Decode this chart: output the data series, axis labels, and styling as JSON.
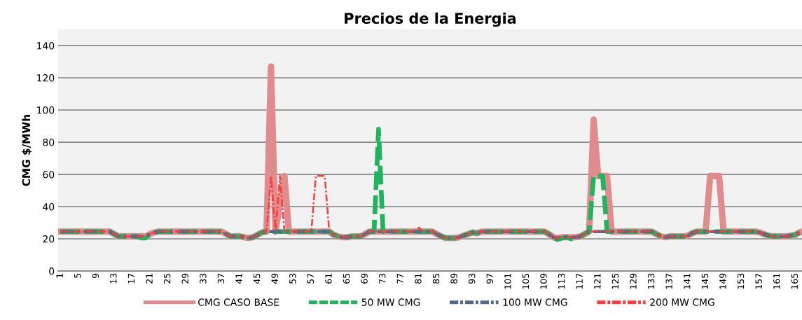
{
  "chart_data": {
    "type": "line",
    "title": "Precios de la Energia",
    "ylabel": "CMG $/MWh",
    "categories": [
      "1",
      null,
      null,
      null,
      "5",
      null,
      null,
      null,
      "9",
      null,
      null,
      null,
      "13",
      null,
      null,
      null,
      "17",
      null,
      null,
      null,
      "21",
      null,
      null,
      null,
      "25",
      null,
      null,
      null,
      "29",
      null,
      null,
      null,
      "33",
      null,
      null,
      null,
      "37",
      null,
      null,
      null,
      "41",
      null,
      null,
      null,
      "45",
      null,
      null,
      null,
      "49",
      null,
      null,
      null,
      "53",
      null,
      null,
      null,
      "57",
      null,
      null,
      null,
      "61",
      null,
      null,
      null,
      "65",
      null,
      null,
      null,
      "69",
      null,
      null,
      null,
      "73",
      null,
      null,
      null,
      "77",
      null,
      null,
      null,
      "81",
      null,
      null,
      null,
      "85",
      null,
      null,
      null,
      "89",
      null,
      null,
      null,
      "93",
      null,
      null,
      null,
      "97",
      null,
      null,
      null,
      "101",
      null,
      null,
      null,
      "105",
      null,
      null,
      null,
      "109",
      null,
      null,
      null,
      "113",
      null,
      null,
      null,
      "117",
      null,
      null,
      null,
      "121",
      null,
      null,
      null,
      "125",
      null,
      null,
      null,
      "129",
      null,
      null,
      null,
      "133",
      null,
      null,
      null,
      "137",
      null,
      null,
      null,
      "141",
      null,
      null,
      null,
      "145",
      null,
      null,
      null,
      "149",
      null,
      null,
      null,
      "153",
      null,
      null,
      null,
      "157",
      null,
      null,
      null,
      "161",
      null,
      null,
      null,
      "165",
      null
    ],
    "series": [
      {
        "name": "CMG CASO BASE",
        "color": "#e08c8e",
        "line_style": "solid",
        "values": [
          24.5,
          24.5,
          24.5,
          24.5,
          24.5,
          24.5,
          24.5,
          24.5,
          24.5,
          24.5,
          24.5,
          24.5,
          23,
          21.5,
          21.5,
          21.5,
          21.5,
          21.5,
          21.5,
          21.5,
          23,
          24,
          24.5,
          24.5,
          24.5,
          24.5,
          24.5,
          24.5,
          24.5,
          24.5,
          24.5,
          24.5,
          24.5,
          24.5,
          24.5,
          24.5,
          24.5,
          23,
          21.5,
          21.5,
          21.5,
          21,
          20.5,
          21,
          22.5,
          24,
          24.5,
          127,
          24.5,
          42,
          59,
          24.5,
          24.5,
          24.5,
          24.5,
          24.5,
          24.5,
          24.5,
          24.5,
          24.5,
          24.5,
          22.5,
          21.5,
          21,
          21,
          21.5,
          21.5,
          21.5,
          23,
          24.5,
          24.5,
          24.5,
          24.5,
          24.5,
          24.5,
          24.5,
          24.5,
          24.5,
          24.5,
          24.5,
          24.5,
          24.5,
          24.5,
          24.5,
          23,
          21.5,
          20.5,
          20.5,
          20.5,
          21,
          22,
          23,
          24,
          23.5,
          24.5,
          24.5,
          24.5,
          24.5,
          24.5,
          24.5,
          24.5,
          24.5,
          24.5,
          24.5,
          24.5,
          24.5,
          24.5,
          24.5,
          24.5,
          23,
          21,
          20.5,
          21,
          21,
          21,
          21,
          21.5,
          23,
          24.5,
          94,
          59,
          59,
          59,
          24.5,
          24.5,
          24.5,
          24.5,
          24.5,
          24.5,
          24.5,
          24.5,
          24.5,
          24.5,
          23,
          21.5,
          21,
          21.5,
          21.5,
          21.5,
          21.5,
          22,
          23.5,
          24.5,
          24.5,
          24.5,
          59,
          59,
          59,
          24.5,
          24.5,
          24.5,
          24.5,
          24.5,
          24.5,
          24.5,
          24.5,
          24,
          23,
          22,
          21.5,
          21.5,
          21.5,
          21.5,
          22,
          22.5,
          24
        ]
      },
      {
        "name": "50 MW CMG",
        "color": "#22b35e",
        "line_style": "dashed",
        "values": [
          24.5,
          24.5,
          24.5,
          24.5,
          24.5,
          24.5,
          24.5,
          24.5,
          24.5,
          24.5,
          24.5,
          24.5,
          23,
          21.5,
          21.5,
          21.5,
          21.5,
          21.5,
          20.5,
          20.5,
          23,
          24,
          24.5,
          24.5,
          24.5,
          24.5,
          24.5,
          24.5,
          24.5,
          24.5,
          24.5,
          24.5,
          24.5,
          24.5,
          24.5,
          24.5,
          24.5,
          23,
          21.5,
          21.5,
          21.5,
          21,
          20.5,
          21,
          22.5,
          24,
          24.5,
          24.5,
          24.5,
          24.5,
          24.5,
          24.5,
          24.5,
          24.5,
          24.5,
          24.5,
          24.5,
          24.5,
          24.5,
          24.5,
          24.5,
          22.5,
          21.5,
          21,
          21,
          21.5,
          21.5,
          21.5,
          23,
          24.5,
          24.5,
          88,
          24.5,
          24.5,
          24.5,
          24.5,
          24.5,
          24.5,
          24.5,
          24.5,
          24.5,
          24.5,
          24.5,
          24.5,
          23,
          21.5,
          20.5,
          20.5,
          20.5,
          21,
          22,
          23,
          24,
          23.5,
          24.5,
          24.5,
          24.5,
          24.5,
          24.5,
          24.5,
          24.5,
          24.5,
          24.5,
          24.5,
          24.5,
          24.5,
          24.5,
          24.5,
          24.5,
          23,
          20.5,
          19.5,
          20.5,
          21,
          20,
          20,
          21.5,
          23,
          24.5,
          59,
          59,
          59,
          24.5,
          24.5,
          24.5,
          24.5,
          24.5,
          24.5,
          24.5,
          24.5,
          24.5,
          24.5,
          24.5,
          23,
          21.5,
          21,
          21.5,
          21.5,
          21.5,
          21.5,
          22,
          23.5,
          24.5,
          24.5,
          24.5,
          24.5,
          24.5,
          24.5,
          24.5,
          24.5,
          24.5,
          24.5,
          24.5,
          24.5,
          24.5,
          24.5,
          24,
          23,
          22,
          21.5,
          21.5,
          21.5,
          21.5,
          22,
          22.5,
          24
        ]
      },
      {
        "name": "100 MW CMG",
        "color": "#4f6a8a",
        "line_style": "dashdot",
        "values": [
          24.5,
          24.5,
          24.5,
          24.5,
          24.5,
          24.5,
          24.5,
          24.5,
          24.5,
          24.5,
          24.5,
          24.5,
          23,
          21.5,
          21.5,
          21.5,
          21.5,
          21.5,
          21.5,
          21.5,
          23,
          24,
          24.5,
          24.5,
          24.5,
          24.5,
          24.5,
          24.5,
          24.5,
          24.5,
          24.5,
          24.5,
          24.5,
          24.5,
          24.5,
          24.5,
          24.5,
          23,
          21.5,
          21.5,
          21.5,
          21,
          20.5,
          21,
          22.5,
          24,
          24.5,
          24.5,
          24.5,
          24.5,
          24.5,
          24.5,
          24.5,
          24.5,
          24.5,
          24.5,
          24.5,
          24.5,
          24.5,
          24.5,
          24.5,
          22.5,
          21.5,
          21,
          21,
          21.5,
          21.5,
          21.5,
          23,
          24.5,
          24.5,
          24.5,
          24.5,
          24.5,
          24.5,
          24.5,
          24.5,
          24.5,
          24.5,
          24.5,
          24.5,
          24.5,
          24.5,
          24.5,
          23,
          21.5,
          20.5,
          20.5,
          20.5,
          21,
          22,
          23,
          24,
          23.5,
          24.5,
          24.5,
          24.5,
          24.5,
          24.5,
          24.5,
          24.5,
          24.5,
          24.5,
          24.5,
          24.5,
          24.5,
          24.5,
          24.5,
          24.5,
          23,
          21,
          20.5,
          21,
          21,
          21,
          21,
          21.5,
          23,
          24.5,
          24.5,
          24.5,
          24.5,
          24.5,
          24.5,
          24.5,
          24.5,
          24.5,
          24.5,
          24.5,
          24.5,
          24.5,
          24.5,
          24.5,
          23,
          21.5,
          21,
          21.5,
          21.5,
          21.5,
          21.5,
          22,
          23.5,
          24.5,
          24.5,
          24.5,
          24.5,
          24.5,
          24.5,
          24.5,
          24.5,
          24.5,
          24.5,
          24.5,
          24.5,
          24.5,
          24.5,
          24,
          23,
          22,
          21.5,
          21.5,
          21.5,
          21.5,
          22,
          22.5,
          24
        ]
      },
      {
        "name": "200 MW CMG",
        "color": "#ff3b3b",
        "line_style": "dashdot",
        "values": [
          24.5,
          24.5,
          24.5,
          24.5,
          24.5,
          24.5,
          24.5,
          24.5,
          24.5,
          24.5,
          24.5,
          24.5,
          23,
          21.5,
          21.5,
          21.5,
          21.5,
          21.5,
          21.5,
          21.5,
          23,
          24,
          24.5,
          24.5,
          24.5,
          24.5,
          24.5,
          24.5,
          24.5,
          24.5,
          24.5,
          24.5,
          24.5,
          24.5,
          24.5,
          24.5,
          24.5,
          23,
          21.5,
          21.5,
          21.5,
          21,
          20.5,
          21,
          22.5,
          24,
          24.5,
          59,
          24.5,
          59,
          24.5,
          24.5,
          24.5,
          24.5,
          24.5,
          24.5,
          24.5,
          59,
          59,
          59,
          24.5,
          22.5,
          21.5,
          21,
          21,
          21.5,
          21.5,
          21.5,
          23,
          24.5,
          24.5,
          24.5,
          24.5,
          24.5,
          24.5,
          24.5,
          24.5,
          24.5,
          24.5,
          24.5,
          27,
          24.5,
          24.5,
          24.5,
          23,
          21.5,
          20.5,
          20.5,
          20.5,
          21,
          22,
          23,
          24,
          23.5,
          24.5,
          24.5,
          24.5,
          24.5,
          24.5,
          24.5,
          24.5,
          24.5,
          24.5,
          24.5,
          24.5,
          24.5,
          24.5,
          24.5,
          24.5,
          23,
          21,
          20.5,
          21,
          21,
          21,
          21,
          21.5,
          23,
          24.5,
          24.5,
          24.5,
          24.5,
          24.5,
          24.5,
          24.5,
          24.5,
          24.5,
          24.5,
          24.5,
          24.5,
          24.5,
          24.5,
          24.5,
          23,
          21.5,
          21,
          21.5,
          21.5,
          21.5,
          21.5,
          22,
          23.5,
          24.5,
          24.5,
          24.5,
          24.5,
          24.5,
          24.5,
          24.5,
          24.5,
          24.5,
          24.5,
          24.5,
          24.5,
          24.5,
          24.5,
          24,
          23,
          22,
          21.5,
          21.5,
          21.5,
          21.5,
          22,
          22.5,
          24
        ]
      }
    ],
    "ylim": [
      0,
      150
    ],
    "yticks": [
      0,
      20,
      40,
      60,
      80,
      100,
      120,
      140
    ],
    "grid": "y",
    "legend": "bottom",
    "marker": "none"
  }
}
